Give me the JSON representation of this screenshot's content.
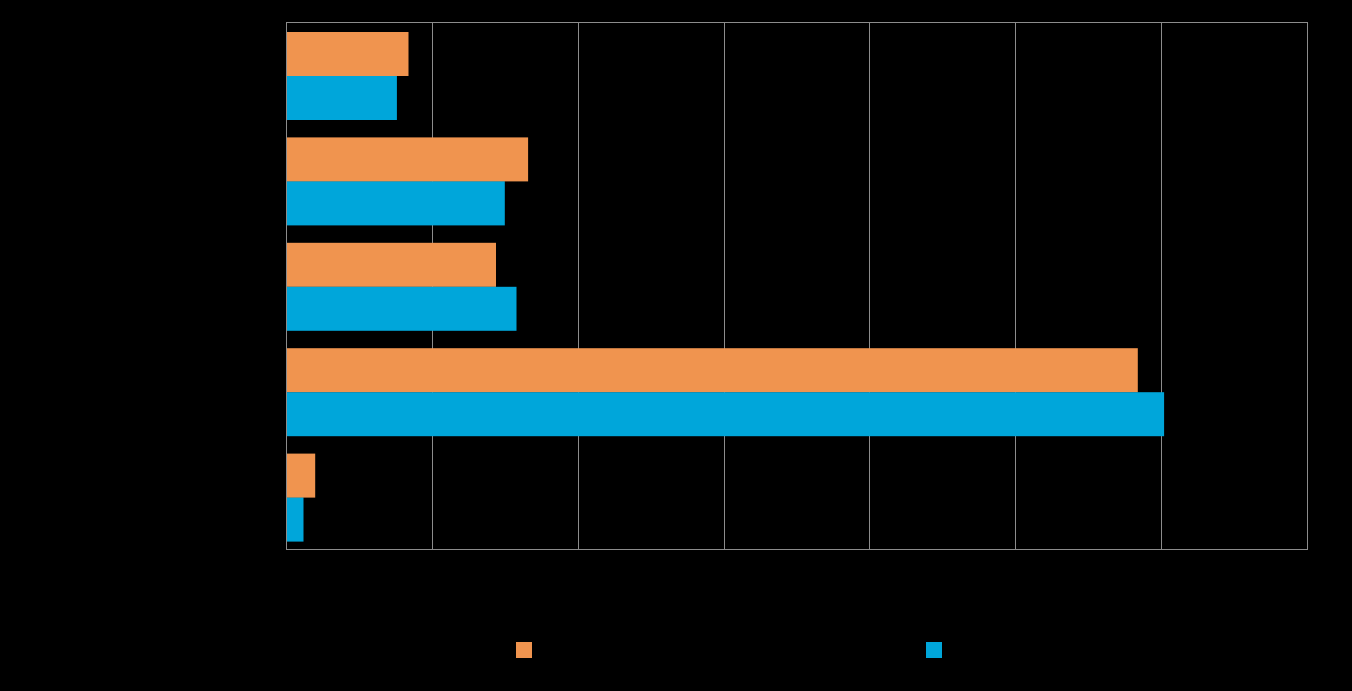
{
  "chart_data": {
    "type": "bar",
    "orientation": "horizontal",
    "title": "",
    "xlabel": "",
    "ylabel": "",
    "categories": [
      "",
      "",
      "",
      "",
      ""
    ],
    "xlim": [
      0,
      35
    ],
    "x_tick_step": 5,
    "grid": true,
    "legend_position": "bottom",
    "series": [
      {
        "color": "#F0944F",
        "values": [
          4.2,
          8.3,
          7.2,
          29.2,
          1.0
        ]
      },
      {
        "color": "#00A6DA",
        "values": [
          3.8,
          7.5,
          7.9,
          30.1,
          0.6
        ]
      }
    ],
    "background": "#000000",
    "gridline_color": "#8C8C8C"
  }
}
